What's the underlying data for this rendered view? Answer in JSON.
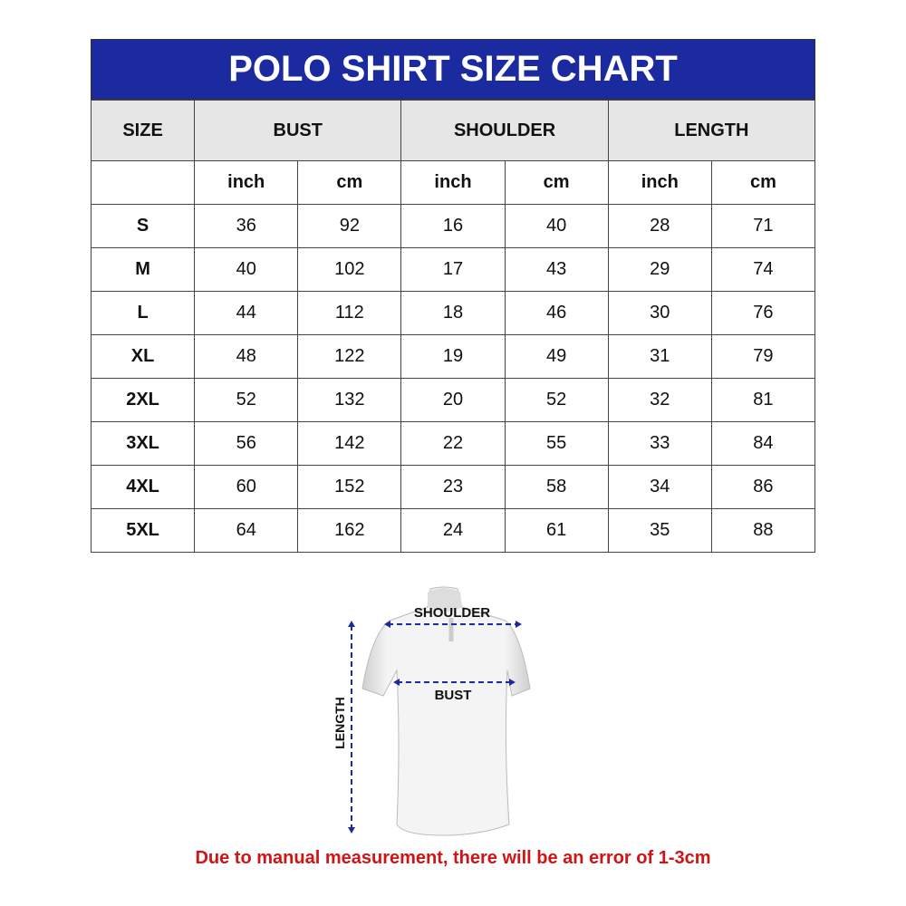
{
  "title": "POLO SHIRT SIZE CHART",
  "colors": {
    "title_bg": "#1b2a9f",
    "header_bg": "#e6e6e6",
    "note": "#d01414",
    "arrow": "#1b2a9f"
  },
  "headers": [
    "SIZE",
    "BUST",
    "SHOULDER",
    "LENGTH"
  ],
  "units": [
    "inch",
    "cm",
    "inch",
    "cm",
    "inch",
    "cm"
  ],
  "rows": [
    [
      "S",
      "36",
      "92",
      "16",
      "40",
      "28",
      "71"
    ],
    [
      "M",
      "40",
      "102",
      "17",
      "43",
      "29",
      "74"
    ],
    [
      "L",
      "44",
      "112",
      "18",
      "46",
      "30",
      "76"
    ],
    [
      "XL",
      "48",
      "122",
      "19",
      "49",
      "31",
      "79"
    ],
    [
      "2XL",
      "52",
      "132",
      "20",
      "52",
      "32",
      "81"
    ],
    [
      "3XL",
      "56",
      "142",
      "22",
      "55",
      "33",
      "84"
    ],
    [
      "4XL",
      "60",
      "152",
      "23",
      "58",
      "34",
      "86"
    ],
    [
      "5XL",
      "64",
      "162",
      "24",
      "61",
      "35",
      "88"
    ]
  ],
  "diagram": {
    "shoulder": "SHOULDER",
    "bust": "BUST",
    "length": "LENGTH"
  },
  "note": "Due to manual measurement, there will be an error of 1-3cm"
}
